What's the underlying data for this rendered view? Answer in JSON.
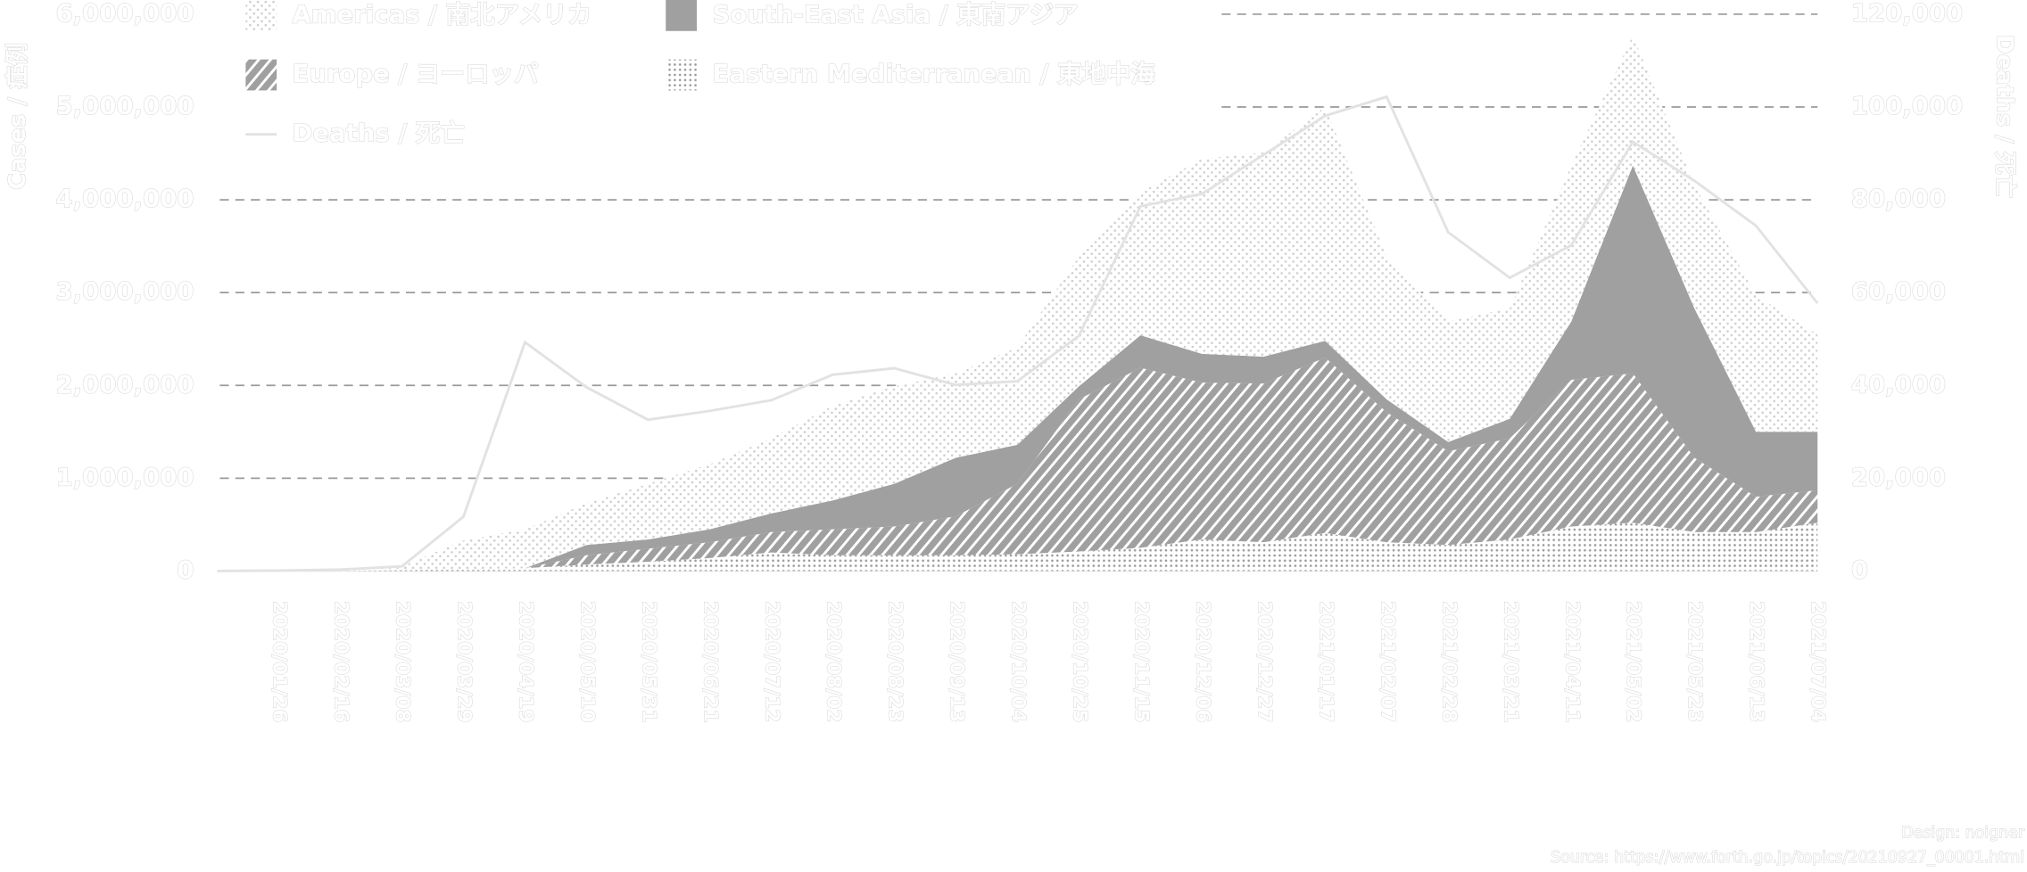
{
  "chart_data": {
    "type": "area",
    "stacked": true,
    "y_label": "Cases / 症例",
    "y2_label": "Deaths / 死亡",
    "design": "Design: noigner",
    "source": "Source: https://www.forth.go.jp/topics/20210927_00001.html",
    "categories": [
      null,
      "2020/01/26",
      "2020/02/16",
      "2020/03/08",
      "2020/03/29",
      "2020/04/19",
      "2020/05/10",
      "2020/05/31",
      "2020/06/21",
      "2020/07/12",
      "2020/08/02",
      "2020/08/23",
      "2020/09/13",
      "2020/10/04",
      "2020/10/25",
      "2020/11/15",
      "2020/12/06",
      "2020/12/27",
      "2021/01/17",
      "2021/02/07",
      "2021/02/28",
      "2021/03/21",
      "2021/04/11",
      "2021/05/02",
      "2021/05/23",
      "2021/06/13",
      "2021/07/04"
    ],
    "series": [
      {
        "name": "Eastern Mediterranean / 東地中海",
        "pattern": "fine-dots",
        "color": "#9a9a9a",
        "values": [
          0,
          0,
          0,
          10000,
          20000,
          30000,
          70000,
          100000,
          140000,
          200000,
          170000,
          170000,
          170000,
          180000,
          210000,
          250000,
          340000,
          310000,
          410000,
          310000,
          280000,
          340000,
          480000,
          520000,
          420000,
          420000,
          520000
        ]
      },
      {
        "name": "Europe / ヨーロッパ",
        "pattern": "hatch",
        "color": "#a0a0a0",
        "values": [
          0,
          0,
          0,
          0,
          0,
          0,
          100000,
          140000,
          170000,
          220000,
          280000,
          310000,
          420000,
          760000,
          1640000,
          1940000,
          1690000,
          1710000,
          1890000,
          1400000,
          1010000,
          1090000,
          1580000,
          1610000,
          800000,
          380000,
          350000
        ]
      },
      {
        "name": "South-East Asia / 東南アジア",
        "pattern": "solid",
        "color": "#a0a0a0",
        "values": [
          0,
          0,
          0,
          0,
          0,
          0,
          110000,
          100000,
          140000,
          200000,
          310000,
          460000,
          630000,
          420000,
          140000,
          350000,
          310000,
          290000,
          180000,
          140000,
          100000,
          210000,
          630000,
          2240000,
          1610000,
          700000,
          630000
        ]
      },
      {
        "name": "Americas / 南北アメリカ",
        "pattern": "dots",
        "color": "#d0d0d0",
        "values": [
          10000,
          10000,
          10000,
          40000,
          310000,
          420000,
          450000,
          600000,
          700000,
          810000,
          1020000,
          1050000,
          910000,
          1050000,
          1400000,
          1540000,
          2100000,
          2200000,
          2520000,
          1540000,
          1300000,
          1190000,
          1680000,
          1400000,
          1330000,
          1470000,
          1050000
        ]
      },
      {
        "name": "Deaths / 死亡",
        "type": "line",
        "axis": "y2",
        "color": "#e2e2e2",
        "values": [
          0,
          100,
          300,
          1000,
          11700,
          49300,
          39600,
          32600,
          34500,
          36800,
          42300,
          43700,
          40100,
          40900,
          50700,
          78600,
          81300,
          89700,
          98100,
          102200,
          73000,
          63200,
          70200,
          92500,
          84100,
          74400,
          57700
        ]
      }
    ],
    "ylim": [
      0,
      6000000
    ],
    "yticks": [
      0,
      {
        "value": 1000000,
        "label": "1,000,000"
      },
      {
        "value": 2000000,
        "label": "2,000,000"
      },
      {
        "value": 3000000,
        "label": "3,000,000"
      },
      {
        "value": 4000000,
        "label": "4,000,000"
      },
      {
        "value": 5000000,
        "label": "5,000,000"
      },
      {
        "value": 6000000,
        "label": "6,000,000"
      }
    ],
    "y2lim": [
      0,
      120000
    ],
    "y2ticks": [
      0,
      {
        "value": 20000,
        "label": "20,000"
      },
      {
        "value": 40000,
        "label": "40,000"
      },
      {
        "value": 60000,
        "label": "60,000"
      },
      {
        "value": 80000,
        "label": "80,000"
      },
      {
        "value": 100000,
        "label": "100,000"
      },
      {
        "value": 120000,
        "label": "120,000"
      }
    ],
    "grid": true,
    "legend": "top-left"
  }
}
